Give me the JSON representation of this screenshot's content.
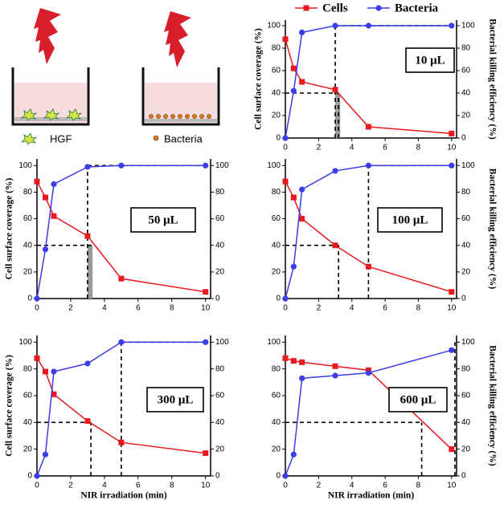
{
  "schematic": {
    "labels": [
      "HGF",
      "Bacteria"
    ]
  },
  "chart_data": [
    {
      "type": "line",
      "annotation": "10 μL",
      "ylabel": "Cell surface coverage (%)",
      "y2label": "Bacterial killing efficiency (%)",
      "x": [
        0,
        0.5,
        1,
        3,
        5,
        10
      ],
      "series": [
        {
          "name": "Cells",
          "color": "#e8191f",
          "marker": "square",
          "values": [
            88,
            62,
            50,
            43,
            10,
            4
          ]
        },
        {
          "name": "Bacteria",
          "color": "#3a3de8",
          "marker": "circle",
          "axis": "y2",
          "values": [
            0,
            42,
            94,
            100,
            100,
            100
          ]
        }
      ],
      "xlim": [
        0,
        10.3
      ],
      "xticks": [
        0,
        2,
        4,
        6,
        8,
        10
      ],
      "ylim": [
        0,
        105
      ],
      "yticks": [
        0,
        20,
        40,
        60,
        80,
        100
      ],
      "y2lim": [
        0,
        105
      ],
      "y2ticks": [
        0,
        20,
        40,
        60,
        80,
        100
      ],
      "guides": [
        {
          "x": [
            3,
            3
          ],
          "y": [
            0,
            100
          ]
        },
        {
          "x": [
            3,
            10
          ],
          "y": [
            100,
            100
          ]
        },
        {
          "x": [
            0,
            3.2
          ],
          "y": [
            40,
            40
          ]
        },
        {
          "x": [
            3.2,
            3.2
          ],
          "y": [
            0,
            40
          ]
        }
      ],
      "band": {
        "x": [
          3,
          3.3
        ],
        "y": [
          0,
          40
        ],
        "color": "#9a9a9a"
      }
    },
    {
      "type": "line",
      "annotation": "50 μL",
      "ylabel": "Cell surface coverage (%)",
      "x": [
        0,
        0.5,
        1,
        3,
        5,
        10
      ],
      "series": [
        {
          "color": "#e8191f",
          "marker": "square",
          "values": [
            88,
            76,
            62,
            47,
            15,
            5
          ]
        },
        {
          "color": "#3a3de8",
          "marker": "circle",
          "axis": "y2",
          "values": [
            0,
            37,
            86,
            99,
            100,
            100
          ]
        }
      ],
      "xlim": [
        0,
        10.3
      ],
      "xticks": [
        0,
        2,
        4,
        6,
        8,
        10
      ],
      "ylim": [
        0,
        105
      ],
      "yticks": [
        0,
        20,
        40,
        60,
        80,
        100
      ],
      "y2lim": [
        0,
        105
      ],
      "y2ticks": [
        0,
        20,
        40,
        60,
        80,
        100
      ],
      "guides": [
        {
          "x": [
            3,
            3
          ],
          "y": [
            0,
            100
          ]
        },
        {
          "x": [
            3,
            10
          ],
          "y": [
            100,
            100
          ]
        },
        {
          "x": [
            0,
            3.3
          ],
          "y": [
            40,
            40
          ]
        }
      ],
      "band": {
        "x": [
          3,
          3.3
        ],
        "y": [
          0,
          40
        ],
        "color": "#9a9a9a"
      }
    },
    {
      "type": "line",
      "annotation": "100 μL",
      "y2label": "Bacterial killing efficiency (%)",
      "x": [
        0,
        0.5,
        1,
        3,
        5,
        10
      ],
      "series": [
        {
          "color": "#e8191f",
          "marker": "square",
          "values": [
            88,
            76,
            60,
            40,
            24,
            5
          ]
        },
        {
          "color": "#3a3de8",
          "marker": "circle",
          "axis": "y2",
          "values": [
            0,
            24,
            82,
            96,
            100,
            100
          ]
        }
      ],
      "xlim": [
        0,
        10.3
      ],
      "xticks": [
        0,
        2,
        4,
        6,
        8,
        10
      ],
      "ylim": [
        0,
        105
      ],
      "yticks": [
        0,
        20,
        40,
        60,
        80,
        100
      ],
      "y2lim": [
        0,
        105
      ],
      "y2ticks": [
        0,
        20,
        40,
        60,
        80,
        100
      ],
      "guides": [
        {
          "x": [
            5,
            5
          ],
          "y": [
            0,
            100
          ]
        },
        {
          "x": [
            5,
            10
          ],
          "y": [
            100,
            100
          ]
        },
        {
          "x": [
            0,
            3.2
          ],
          "y": [
            40,
            40
          ]
        },
        {
          "x": [
            3.2,
            3.2
          ],
          "y": [
            0,
            40
          ]
        }
      ]
    },
    {
      "type": "line",
      "annotation": "300 μL",
      "ylabel": "Cell surface coverage (%)",
      "xlabel": "NIR irradiation (min)",
      "x": [
        0,
        0.5,
        1,
        3,
        5,
        10
      ],
      "series": [
        {
          "color": "#e8191f",
          "marker": "square",
          "values": [
            88,
            78,
            61,
            41,
            25,
            17
          ]
        },
        {
          "color": "#3a3de8",
          "marker": "circle",
          "axis": "y2",
          "values": [
            0,
            16,
            78,
            84,
            100,
            100
          ]
        }
      ],
      "xlim": [
        0,
        10.3
      ],
      "xticks": [
        0,
        2,
        4,
        6,
        8,
        10
      ],
      "ylim": [
        0,
        105
      ],
      "yticks": [
        0,
        20,
        40,
        60,
        80,
        100
      ],
      "y2lim": [
        0,
        105
      ],
      "y2ticks": [
        0,
        20,
        40,
        60,
        80,
        100
      ],
      "guides": [
        {
          "x": [
            5,
            5
          ],
          "y": [
            0,
            100
          ]
        },
        {
          "x": [
            5,
            10
          ],
          "y": [
            100,
            100
          ]
        },
        {
          "x": [
            0,
            3.2
          ],
          "y": [
            40,
            40
          ]
        },
        {
          "x": [
            3.2,
            3.2
          ],
          "y": [
            0,
            40
          ]
        }
      ]
    },
    {
      "type": "line",
      "annotation": "600 μL",
      "y2label": "Bacterial killing efficiency (%)",
      "xlabel": "NIR irradiation (min)",
      "x": [
        0,
        0.5,
        1,
        3,
        5,
        10
      ],
      "series": [
        {
          "color": "#e8191f",
          "marker": "square",
          "values": [
            88,
            86,
            85,
            82,
            79,
            20
          ]
        },
        {
          "color": "#3a3de8",
          "marker": "circle",
          "axis": "y2",
          "values": [
            0,
            16,
            73,
            75,
            77,
            94
          ]
        }
      ],
      "xlim": [
        0,
        10.3
      ],
      "xticks": [
        0,
        2,
        4,
        6,
        8,
        10
      ],
      "ylim": [
        0,
        105
      ],
      "yticks": [
        0,
        20,
        40,
        60,
        80,
        100
      ],
      "y2lim": [
        0,
        105
      ],
      "y2ticks": [
        0,
        20,
        40,
        60,
        80,
        100
      ],
      "guides": [
        {
          "x": [
            0,
            8.2
          ],
          "y": [
            40,
            40
          ]
        },
        {
          "x": [
            8.2,
            8.2
          ],
          "y": [
            0,
            40
          ]
        },
        {
          "x": [
            10.2,
            10.2
          ],
          "y": [
            0,
            100
          ]
        }
      ]
    }
  ]
}
